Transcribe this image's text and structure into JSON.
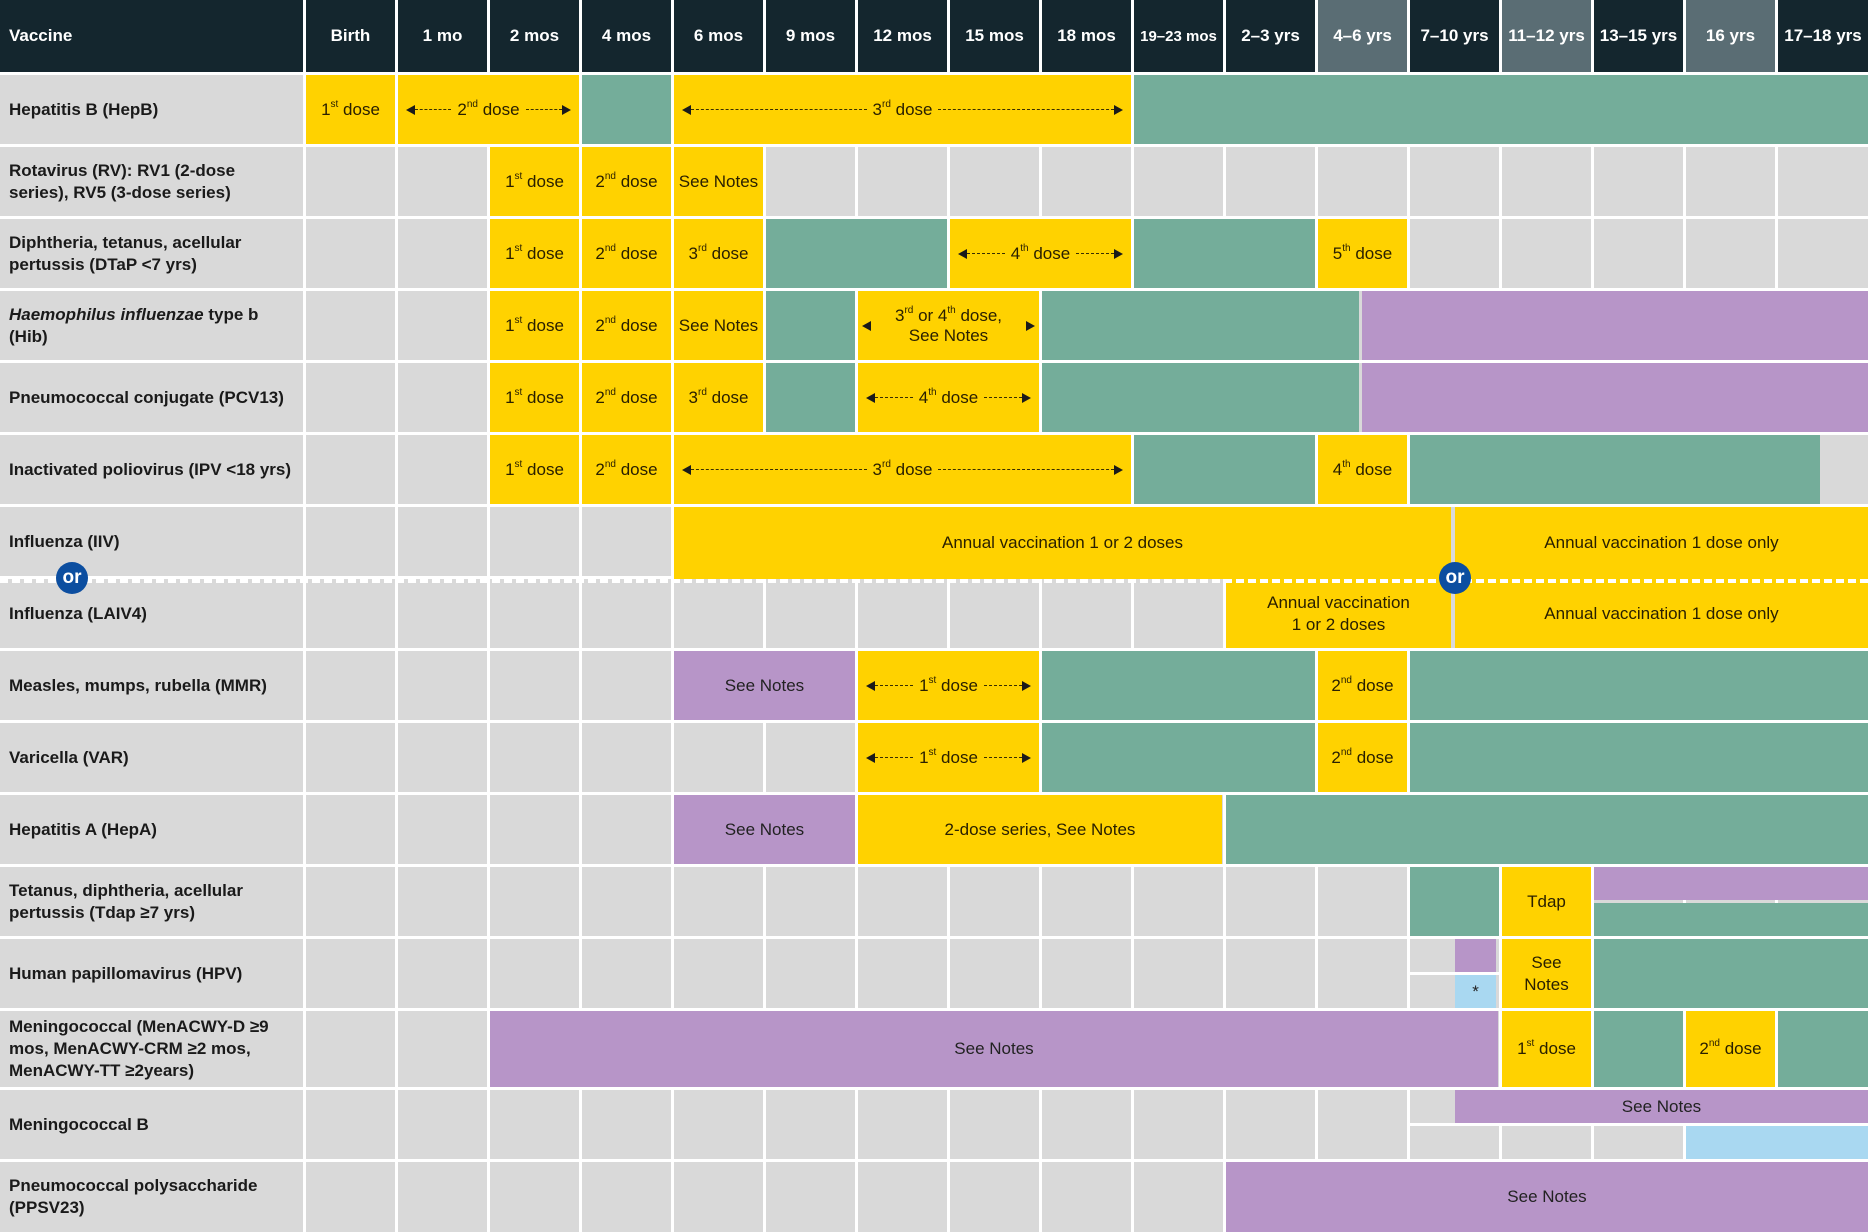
{
  "header": {
    "vaccine": "Vaccine",
    "ages": [
      "Birth",
      "1 mo",
      "2 mos",
      "4 mos",
      "6 mos",
      "9 mos",
      "12 mos",
      "15 mos",
      "18 mos",
      "19–23 mos",
      "2–3 yrs",
      "4–6 yrs",
      "7–10 yrs",
      "11–12 yrs",
      "13–15 yrs",
      "16 yrs",
      "17–18 yrs"
    ]
  },
  "rows": {
    "hepb": "Hepatitis B (HepB)",
    "rv": "Rotavirus (RV): RV1 (2-dose series), RV5 (3-dose series)",
    "dtap": "Diphtheria, tetanus, acellular pertussis (DTaP <7 yrs)",
    "hib_italic": "Haemophilus influenzae",
    "hib_rest": "type b (Hib)",
    "pcv": "Pneumococcal conjugate (PCV13)",
    "ipv": "Inactivated poliovirus (IPV <18 yrs)",
    "iiv": "Influenza (IIV)",
    "laiv": "Influenza (LAIV4)",
    "mmr": "Measles, mumps, rubella (MMR)",
    "var": "Varicella (VAR)",
    "hepa": "Hepatitis A (HepA)",
    "tdap": "Tetanus, diphtheria, acellular pertussis (Tdap ≥7 yrs)",
    "hpv": "Human papillomavirus (HPV)",
    "menacwy": "Meningococcal (MenACWY-D ≥9 mos, MenACWY-CRM ≥2 mos, MenACWY-TT ≥2years)",
    "menb": "Meningococcal B",
    "ppsv": "Pneumococcal polysaccharide (PPSV23)"
  },
  "text": {
    "dose_word": " dose",
    "sup_st": "st",
    "sup_nd": "nd",
    "sup_rd": "rd",
    "sup_th": "th",
    "n1": "1",
    "n2": "2",
    "n3": "3",
    "n4": "4",
    "n5": "5",
    "see_notes": "See Notes",
    "or": "or",
    "hib_34_a": "3",
    "hib_34_b": " or 4",
    "hib_34_c": " dose,",
    "annual_12": "Annual vaccination 1 or 2 doses",
    "annual_1only": "Annual vaccination 1 dose only",
    "laiv_a": "Annual vaccination",
    "laiv_b": "1 or 2 doses",
    "hepa_series": "2-dose series, See Notes",
    "tdap": "Tdap",
    "hpv_see": "See",
    "hpv_notes": "Notes",
    "asterisk": "*"
  },
  "legend_colors": {
    "recommended_all": "#ffd200",
    "catch_up": "#74ad9a",
    "high_risk": "#b795c8",
    "shared_decision": "#a9d8f1",
    "not_recommended": "#d9d9d9"
  }
}
